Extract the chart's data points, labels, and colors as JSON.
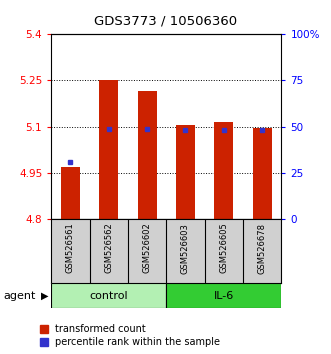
{
  "title": "GDS3773 / 10506360",
  "samples": [
    "GSM526561",
    "GSM526562",
    "GSM526602",
    "GSM526603",
    "GSM526605",
    "GSM526678"
  ],
  "red_values": [
    4.97,
    5.25,
    5.215,
    5.105,
    5.115,
    5.095
  ],
  "blue_values": [
    4.985,
    5.093,
    5.093,
    5.09,
    5.09,
    5.09
  ],
  "ymin": 4.8,
  "ymax": 5.4,
  "yticks_red": [
    4.8,
    4.95,
    5.1,
    5.25,
    5.4
  ],
  "yticks_blue_vals": [
    0,
    25,
    50,
    75,
    100
  ],
  "dotted_lines": [
    4.95,
    5.1,
    5.25
  ],
  "control_color": "#b3f0b3",
  "il6_color": "#33cc33",
  "bar_color": "#cc2200",
  "blue_color": "#3333cc",
  "bar_bottom": 4.8,
  "legend_red_label": "transformed count",
  "legend_blue_label": "percentile rank within the sample",
  "agent_label": "agent",
  "control_label": "control",
  "il6_label": "IL-6",
  "gray_bg": "#d0d0d0"
}
